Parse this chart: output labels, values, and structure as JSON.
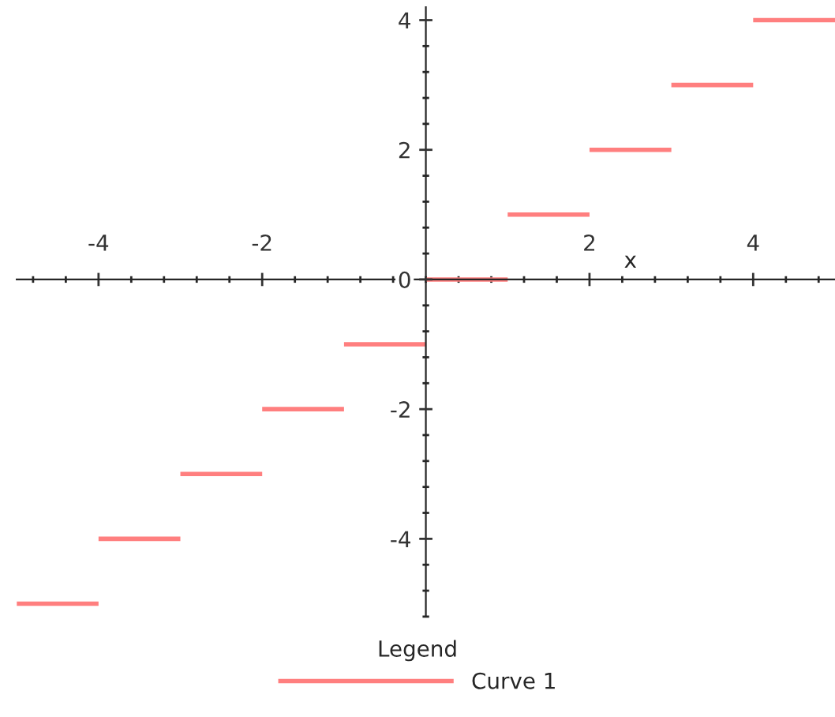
{
  "chart_data": {
    "type": "line",
    "xlabel": "x",
    "legend_title": "Legend",
    "legend": "bottom",
    "xlim": [
      -5,
      5
    ],
    "ylim": [
      -5.2,
      4.2
    ],
    "xticks": [
      -4,
      -2,
      2,
      4
    ],
    "yticks": [
      -4,
      -2,
      0,
      2,
      4
    ],
    "series": [
      {
        "name": "Curve 1",
        "color": "#ff7f7f",
        "x": [
          -5,
          -4,
          -4,
          -3,
          -3,
          -2,
          -2,
          -1,
          -1,
          0,
          0,
          1,
          1,
          2,
          2,
          3,
          3,
          4,
          4,
          5
        ],
        "values": [
          -5,
          -5,
          -4,
          -4,
          -3,
          -3,
          -2,
          -2,
          -1,
          -1,
          0,
          0,
          1,
          1,
          2,
          2,
          3,
          3,
          4,
          4
        ]
      }
    ]
  }
}
